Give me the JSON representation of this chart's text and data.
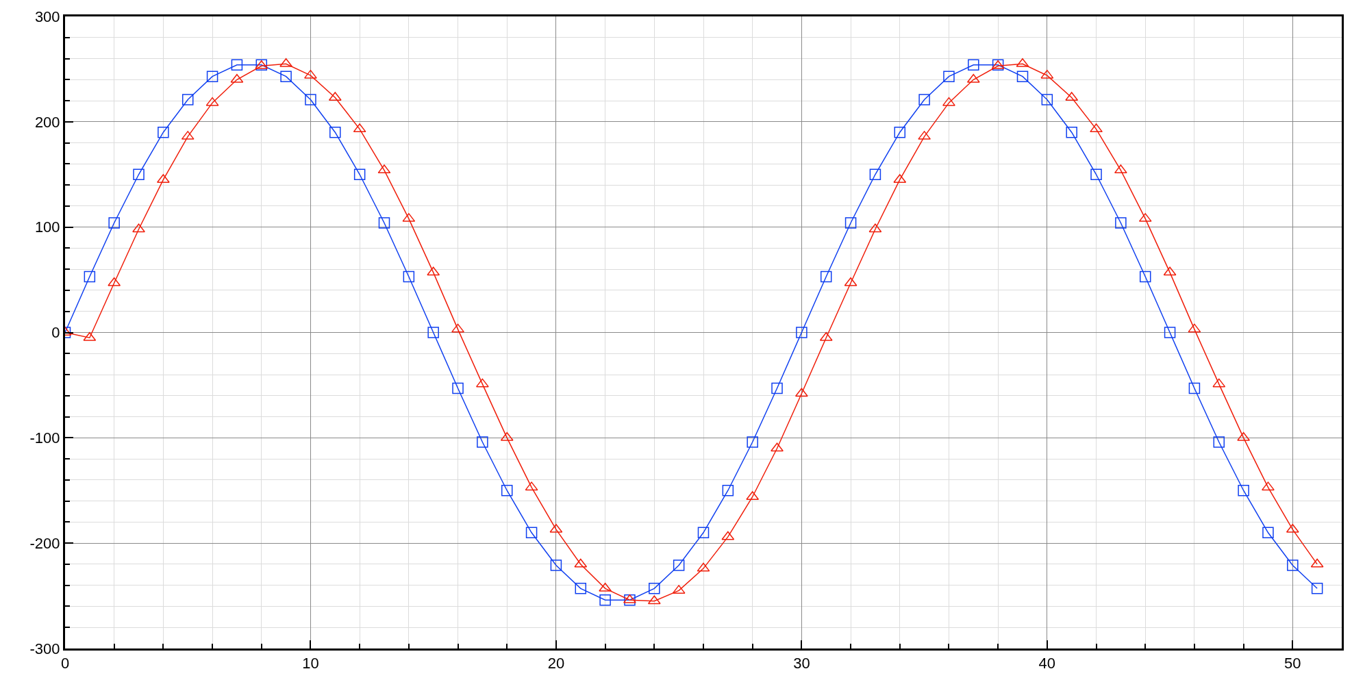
{
  "chart_data": {
    "type": "line",
    "x": [
      0,
      1,
      2,
      3,
      4,
      5,
      6,
      7,
      8,
      9,
      10,
      11,
      12,
      13,
      14,
      15,
      16,
      17,
      18,
      19,
      20,
      21,
      22,
      23,
      24,
      25,
      26,
      27,
      28,
      29,
      30,
      31,
      32,
      33,
      34,
      35,
      36,
      37,
      38,
      39,
      40,
      41,
      42,
      43,
      44,
      45,
      46,
      47,
      48,
      49,
      50,
      51
    ],
    "series": [
      {
        "color": "#1040f0",
        "marker": "square",
        "values": [
          0,
          53,
          104,
          150,
          190,
          221,
          243,
          254,
          254,
          243,
          221,
          190,
          150,
          104,
          53,
          0,
          -53,
          -104,
          -150,
          -190,
          -221,
          -243,
          -254,
          -254,
          -243,
          -221,
          -190,
          -150,
          -104,
          -53,
          0,
          53,
          104,
          150,
          190,
          221,
          243,
          254,
          254,
          243,
          221,
          190,
          150,
          104,
          53,
          0,
          -53,
          -104,
          -150,
          -190,
          -221,
          -243
        ]
      },
      {
        "color": "#f01e0a",
        "marker": "triangle",
        "values": [
          0,
          -5,
          47,
          98,
          145,
          186,
          218,
          240,
          253,
          255,
          244,
          223,
          193,
          154,
          108,
          57,
          3,
          -49,
          -100,
          -147,
          -187,
          -220,
          -243,
          -254,
          -255,
          -245,
          -224,
          -194,
          -156,
          -110,
          -58,
          -5,
          47,
          98,
          145,
          186,
          218,
          240,
          253,
          255,
          244,
          223,
          193,
          154,
          108,
          57,
          3,
          -49,
          -100,
          -147,
          -187,
          -220
        ]
      }
    ],
    "xlim": [
      0,
      52
    ],
    "ylim": [
      -300,
      300
    ],
    "xticks": [
      0,
      {
        "value": 2,
        "label": null
      },
      {
        "value": 4,
        "label": null
      },
      {
        "value": 6,
        "label": null
      },
      {
        "value": 8,
        "label": null
      },
      10,
      {
        "value": 12,
        "label": null
      },
      {
        "value": 14,
        "label": null
      },
      {
        "value": 16,
        "label": null
      },
      {
        "value": 18,
        "label": null
      },
      20,
      {
        "value": 22,
        "label": null
      },
      {
        "value": 24,
        "label": null
      },
      {
        "value": 26,
        "label": null
      },
      {
        "value": 28,
        "label": null
      },
      30,
      {
        "value": 32,
        "label": null
      },
      {
        "value": 34,
        "label": null
      },
      {
        "value": 36,
        "label": null
      },
      {
        "value": 38,
        "label": null
      },
      40,
      {
        "value": 42,
        "label": null
      },
      {
        "value": 44,
        "label": null
      },
      {
        "value": 46,
        "label": null
      },
      {
        "value": 48,
        "label": null
      },
      50,
      {
        "value": 52,
        "label": null
      }
    ],
    "yticks": [
      -300,
      {
        "value": -280,
        "label": null
      },
      {
        "value": -260,
        "label": null
      },
      {
        "value": -240,
        "label": null
      },
      {
        "value": -220,
        "label": null
      },
      -200,
      {
        "value": -180,
        "label": null
      },
      {
        "value": -160,
        "label": null
      },
      {
        "value": -140,
        "label": null
      },
      {
        "value": -120,
        "label": null
      },
      -100,
      {
        "value": -80,
        "label": null
      },
      {
        "value": -60,
        "label": null
      },
      {
        "value": -40,
        "label": null
      },
      {
        "value": -20,
        "label": null
      },
      0,
      {
        "value": 20,
        "label": null
      },
      {
        "value": 40,
        "label": null
      },
      {
        "value": 60,
        "label": null
      },
      {
        "value": 80,
        "label": null
      },
      100,
      {
        "value": 120,
        "label": null
      },
      {
        "value": 140,
        "label": null
      },
      {
        "value": 160,
        "label": null
      },
      {
        "value": 180,
        "label": null
      },
      200,
      {
        "value": 220,
        "label": null
      },
      {
        "value": 240,
        "label": null
      },
      {
        "value": 260,
        "label": null
      },
      {
        "value": 280,
        "label": null
      },
      300
    ],
    "grid": true,
    "line_style": "solid"
  }
}
